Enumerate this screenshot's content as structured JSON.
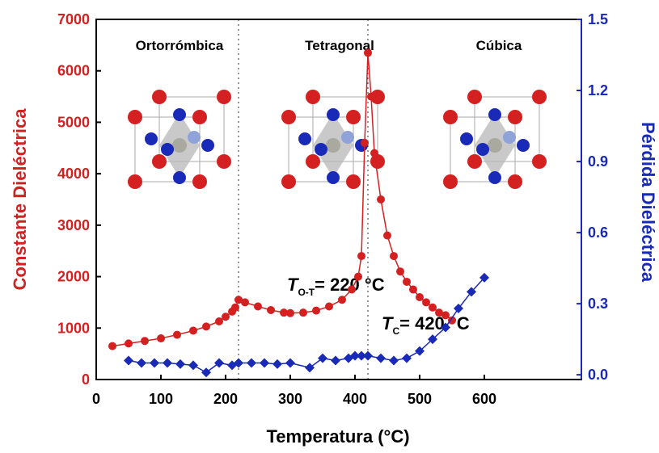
{
  "chart_data": {
    "type": "scatter",
    "x_label": "Temperatura (°C)",
    "y_label": "Constante Dieléctrica",
    "y2_label": "Pérdida Dieléctrica",
    "xlim": [
      0,
      750
    ],
    "xticks": [
      0,
      100,
      200,
      300,
      400,
      500,
      600
    ],
    "ylim": [
      0,
      7000
    ],
    "yticks": [
      0,
      1000,
      2000,
      3000,
      4000,
      5000,
      6000,
      7000
    ],
    "y2lim": [
      -0.02,
      1.5
    ],
    "y2ticks": [
      {
        "value": 0,
        "label": "0.0"
      },
      0.3,
      0.6,
      0.9,
      1.2,
      1.5
    ],
    "phases": [
      "Ortorrómbica",
      "Tetragonal",
      "Cúbica"
    ],
    "transitions": [
      {
        "x": 220,
        "symbol": "T",
        "sub": "O-T",
        "text": "= 220 °C"
      },
      {
        "x": 420,
        "symbol": "T",
        "sub": "C",
        "text": "= 420 °C"
      }
    ],
    "series": [
      {
        "name": "Constante Dieléctrica",
        "color": "#d42020",
        "marker": "circle",
        "x": [
          25,
          50,
          75,
          100,
          125,
          150,
          170,
          190,
          200,
          210,
          215,
          220,
          230,
          250,
          270,
          290,
          300,
          320,
          340,
          360,
          380,
          395,
          405,
          410,
          415,
          420,
          425,
          430,
          440,
          450,
          460,
          470,
          480,
          490,
          500,
          510,
          520,
          530,
          540,
          550
        ],
        "values": [
          650,
          700,
          750,
          800,
          870,
          950,
          1030,
          1130,
          1220,
          1320,
          1400,
          1550,
          1500,
          1420,
          1350,
          1300,
          1290,
          1300,
          1340,
          1420,
          1550,
          1750,
          2000,
          2400,
          4600,
          6350,
          5500,
          4400,
          3500,
          2800,
          2400,
          2100,
          1900,
          1750,
          1600,
          1500,
          1400,
          1300,
          1250,
          1150
        ]
      },
      {
        "name": "Pérdida Dieléctrica",
        "color": "#1a2ab8",
        "marker": "diamond",
        "axis": "y2",
        "x": [
          50,
          70,
          90,
          110,
          130,
          150,
          170,
          190,
          210,
          220,
          240,
          260,
          280,
          300,
          330,
          350,
          370,
          390,
          400,
          410,
          420,
          440,
          460,
          480,
          500,
          520,
          540,
          560,
          580,
          600
        ],
        "values": [
          0.06,
          0.05,
          0.05,
          0.05,
          0.045,
          0.04,
          0.01,
          0.05,
          0.04,
          0.05,
          0.05,
          0.05,
          0.045,
          0.05,
          0.03,
          0.07,
          0.06,
          0.07,
          0.08,
          0.08,
          0.08,
          0.07,
          0.06,
          0.07,
          0.1,
          0.15,
          0.2,
          0.28,
          0.35,
          0.41
        ]
      }
    ]
  }
}
